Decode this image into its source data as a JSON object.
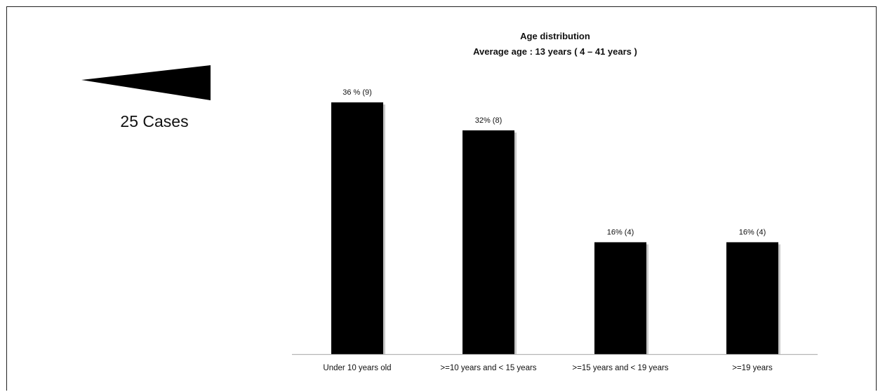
{
  "cases": {
    "label": "25 Cases"
  },
  "colors": {
    "bar": "#000000",
    "shadow": "#9a9a9a",
    "axis": "#b5b5b5",
    "text": "#111111"
  },
  "chart_data": {
    "type": "bar",
    "title": "Age distribution",
    "subtitle": "Average age : 13 years ( 4 – 41 years )",
    "xlabel": "",
    "ylabel": "",
    "categories": [
      "Under 10 years old",
      ">=10 years and < 15 years",
      ">=15 years and < 19 years",
      ">=19 years"
    ],
    "values": [
      36,
      32,
      16,
      16
    ],
    "counts": [
      9,
      8,
      4,
      4
    ],
    "data_labels": [
      "36 % (9)",
      "32% (8)",
      "16% (4)",
      "16% (4)"
    ],
    "ylim": [
      0,
      36
    ],
    "grid": false,
    "legend": "none"
  }
}
